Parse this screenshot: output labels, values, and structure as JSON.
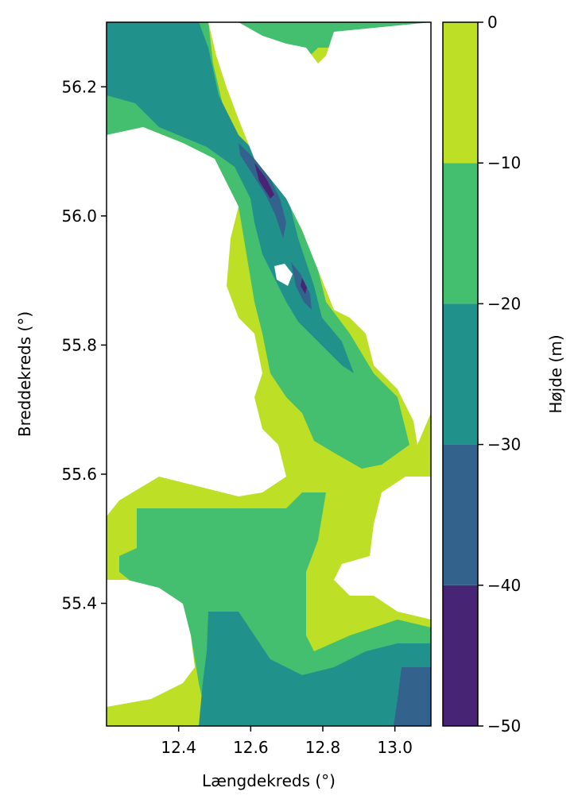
{
  "chart_data": {
    "type": "heatmap",
    "subtype": "filled-contour-map",
    "xlabel": "Længdekreds (°)",
    "ylabel": "Breddekreds (°)",
    "xlim": [
      12.2,
      13.1
    ],
    "ylim": [
      55.21,
      56.3
    ],
    "x_ticks": [
      12.4,
      12.6,
      12.8,
      13.0
    ],
    "x_tick_labels": [
      "12.4",
      "12.6",
      "12.8",
      "13.0"
    ],
    "y_ticks": [
      55.4,
      55.6,
      55.8,
      56.0,
      56.2
    ],
    "y_tick_labels": [
      "55.4",
      "55.6",
      "55.8",
      "56.0",
      "56.2"
    ],
    "colorbar": {
      "label": "Højde (m)",
      "levels": [
        -50,
        -40,
        -30,
        -20,
        -10,
        0
      ],
      "tick_labels": [
        "−50",
        "−40",
        "−30",
        "−20",
        "−10",
        "0"
      ],
      "bands": [
        {
          "from": -50,
          "to": -40,
          "color": "#482475"
        },
        {
          "from": -40,
          "to": -30,
          "color": "#33638d"
        },
        {
          "from": -30,
          "to": -20,
          "color": "#21918c"
        },
        {
          "from": -20,
          "to": -10,
          "color": "#44bf70"
        },
        {
          "from": -10,
          "to": 0,
          "color": "#bddf26"
        }
      ]
    },
    "land_color": "#ffffff",
    "grid": false
  }
}
